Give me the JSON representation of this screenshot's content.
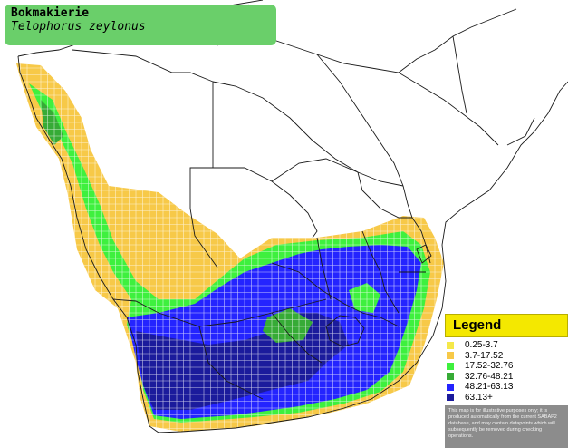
{
  "title": {
    "common_name": "Bokmakierie",
    "scientific_name": "Telophorus zeylonus"
  },
  "legend": {
    "heading": "Legend",
    "items": [
      {
        "label": "0.25-3.7",
        "color": "#f5e84a"
      },
      {
        "label": "3.7-17.52",
        "color": "#f7c948"
      },
      {
        "label": "17.52-32.76",
        "color": "#3ef03e"
      },
      {
        "label": "32.76-48.21",
        "color": "#36ab36"
      },
      {
        "label": "48.21-63.13",
        "color": "#2424ff"
      },
      {
        "label": "63.13+",
        "color": "#1b1b9c"
      }
    ],
    "note": "This map is for illustrative purposes only; it is produced automatically from the current SABAP2 database, and may contain datapoints which will subsequently be removed during checking operations."
  },
  "map": {
    "land_color": "#ffffff",
    "border_color": "#1a1a1a",
    "grid_color": "#ffffff"
  }
}
